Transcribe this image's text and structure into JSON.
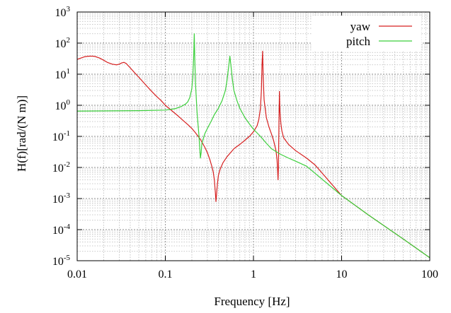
{
  "chart_data": {
    "type": "line",
    "title": "",
    "xlabel": "Frequency [Hz]",
    "ylabel": "H(f)[rad/(N m)]",
    "xscale": "log",
    "yscale": "log",
    "xlim": [
      0.01,
      100
    ],
    "ylim": [
      1e-05,
      1000
    ],
    "grid": true,
    "legend_position": "top-right",
    "x_ticks": [
      {
        "value": 0.01,
        "label": "0.01"
      },
      {
        "value": 0.1,
        "label": "0.1"
      },
      {
        "value": 1,
        "label": "1"
      },
      {
        "value": 10,
        "label": "10"
      },
      {
        "value": 100,
        "label": "100"
      }
    ],
    "y_ticks": [
      {
        "value": 1e-05,
        "base": "10",
        "exp": "-5"
      },
      {
        "value": 0.0001,
        "base": "10",
        "exp": "-4"
      },
      {
        "value": 0.001,
        "base": "10",
        "exp": "-3"
      },
      {
        "value": 0.01,
        "base": "10",
        "exp": "-2"
      },
      {
        "value": 0.1,
        "base": "10",
        "exp": "-1"
      },
      {
        "value": 1,
        "base": "10",
        "exp": "0"
      },
      {
        "value": 10,
        "base": "10",
        "exp": "1"
      },
      {
        "value": 100,
        "base": "10",
        "exp": "2"
      },
      {
        "value": 1000,
        "base": "10",
        "exp": "3"
      }
    ],
    "series": [
      {
        "name": "yaw",
        "color": "#d62020",
        "points": [
          [
            0.01,
            30
          ],
          [
            0.011,
            33
          ],
          [
            0.012,
            36
          ],
          [
            0.013,
            37.5
          ],
          [
            0.014,
            38
          ],
          [
            0.015,
            38
          ],
          [
            0.016,
            37
          ],
          [
            0.018,
            33
          ],
          [
            0.02,
            28
          ],
          [
            0.022,
            24
          ],
          [
            0.025,
            21
          ],
          [
            0.028,
            20
          ],
          [
            0.03,
            21
          ],
          [
            0.032,
            23
          ],
          [
            0.034,
            24
          ],
          [
            0.036,
            22
          ],
          [
            0.04,
            16
          ],
          [
            0.045,
            11
          ],
          [
            0.05,
            8
          ],
          [
            0.06,
            4.5
          ],
          [
            0.07,
            2.8
          ],
          [
            0.08,
            1.9
          ],
          [
            0.09,
            1.4
          ],
          [
            0.1,
            1.0
          ],
          [
            0.12,
            0.65
          ],
          [
            0.14,
            0.45
          ],
          [
            0.16,
            0.32
          ],
          [
            0.18,
            0.24
          ],
          [
            0.2,
            0.18
          ],
          [
            0.22,
            0.13
          ],
          [
            0.25,
            0.08
          ],
          [
            0.28,
            0.045
          ],
          [
            0.3,
            0.03
          ],
          [
            0.32,
            0.018
          ],
          [
            0.34,
            0.01
          ],
          [
            0.35,
            0.007
          ],
          [
            0.36,
            0.004
          ],
          [
            0.37,
            0.0015
          ],
          [
            0.375,
            0.0008
          ],
          [
            0.38,
            0.0012
          ],
          [
            0.39,
            0.003
          ],
          [
            0.4,
            0.0055
          ],
          [
            0.42,
            0.009
          ],
          [
            0.45,
            0.014
          ],
          [
            0.5,
            0.022
          ],
          [
            0.55,
            0.03
          ],
          [
            0.6,
            0.04
          ],
          [
            0.7,
            0.055
          ],
          [
            0.8,
            0.075
          ],
          [
            0.9,
            0.1
          ],
          [
            1.0,
            0.14
          ],
          [
            1.1,
            0.22
          ],
          [
            1.15,
            0.35
          ],
          [
            1.2,
            0.8
          ],
          [
            1.23,
            3
          ],
          [
            1.25,
            20
          ],
          [
            1.27,
            55
          ],
          [
            1.29,
            8
          ],
          [
            1.32,
            1.5
          ],
          [
            1.4,
            0.4
          ],
          [
            1.5,
            0.2
          ],
          [
            1.6,
            0.12
          ],
          [
            1.7,
            0.07
          ],
          [
            1.8,
            0.035
          ],
          [
            1.85,
            0.018
          ],
          [
            1.88,
            0.008
          ],
          [
            1.9,
            0.004
          ],
          [
            1.92,
            0.01
          ],
          [
            1.95,
            0.4
          ],
          [
            1.97,
            2.8
          ],
          [
            2.0,
            0.6
          ],
          [
            2.05,
            0.25
          ],
          [
            2.1,
            0.15
          ],
          [
            2.2,
            0.09
          ],
          [
            2.5,
            0.055
          ],
          [
            3.0,
            0.035
          ],
          [
            4.0,
            0.02
          ],
          [
            5.0,
            0.012
          ],
          [
            10,
            0.00125
          ],
          [
            20,
            0.0003
          ],
          [
            50,
            5e-05
          ],
          [
            100,
            1.25e-05
          ]
        ]
      },
      {
        "name": "pitch",
        "color": "#3ccf3c",
        "points": [
          [
            0.01,
            0.65
          ],
          [
            0.05,
            0.67
          ],
          [
            0.1,
            0.7
          ],
          [
            0.13,
            0.78
          ],
          [
            0.15,
            0.9
          ],
          [
            0.17,
            1.1
          ],
          [
            0.18,
            1.3
          ],
          [
            0.19,
            1.8
          ],
          [
            0.2,
            3.5
          ],
          [
            0.205,
            8
          ],
          [
            0.21,
            40
          ],
          [
            0.213,
            200
          ],
          [
            0.216,
            30
          ],
          [
            0.22,
            5
          ],
          [
            0.225,
            1.5
          ],
          [
            0.23,
            0.5
          ],
          [
            0.24,
            0.12
          ],
          [
            0.245,
            0.05
          ],
          [
            0.25,
            0.02
          ],
          [
            0.255,
            0.03
          ],
          [
            0.26,
            0.06
          ],
          [
            0.28,
            0.12
          ],
          [
            0.3,
            0.18
          ],
          [
            0.33,
            0.3
          ],
          [
            0.36,
            0.5
          ],
          [
            0.4,
            0.8
          ],
          [
            0.44,
            1.4
          ],
          [
            0.48,
            3
          ],
          [
            0.5,
            6
          ],
          [
            0.52,
            15
          ],
          [
            0.54,
            38
          ],
          [
            0.56,
            15
          ],
          [
            0.58,
            6
          ],
          [
            0.6,
            3
          ],
          [
            0.65,
            1.4
          ],
          [
            0.7,
            0.8
          ],
          [
            0.8,
            0.4
          ],
          [
            0.9,
            0.25
          ],
          [
            1.0,
            0.17
          ],
          [
            1.2,
            0.1
          ],
          [
            1.4,
            0.06
          ],
          [
            1.6,
            0.04
          ],
          [
            2.0,
            0.027
          ],
          [
            2.5,
            0.02
          ],
          [
            3.0,
            0.016
          ],
          [
            4.0,
            0.011
          ],
          [
            10,
            0.00125
          ],
          [
            20,
            0.0003
          ],
          [
            50,
            5e-05
          ],
          [
            100,
            1.25e-05
          ]
        ]
      }
    ]
  }
}
